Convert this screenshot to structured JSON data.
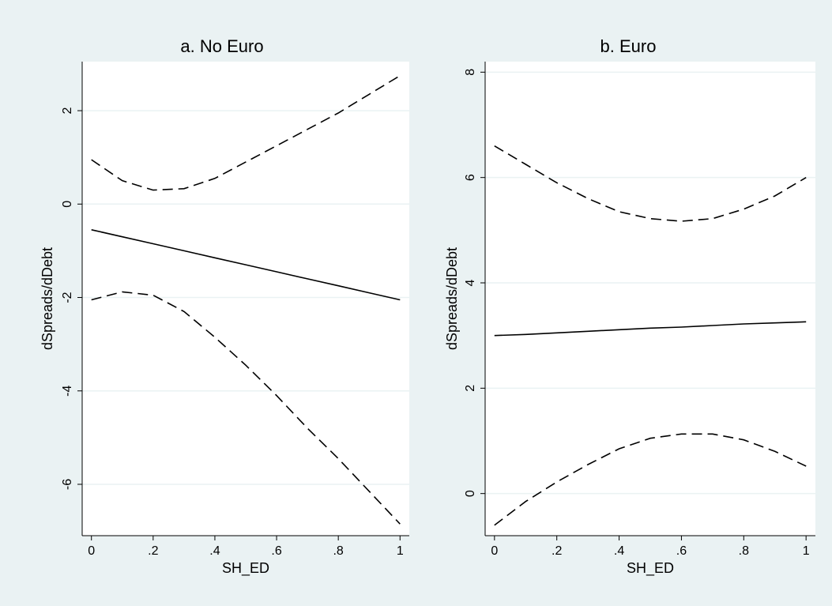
{
  "chart_data": [
    {
      "type": "line",
      "title": "a. No Euro",
      "xlabel": "SH_ED",
      "ylabel": "dSpreads/dDebt",
      "xlim": [
        -0.03,
        1.03
      ],
      "ylim": [
        -7.1,
        3.05
      ],
      "x_ticks": [
        0,
        0.2,
        0.4,
        0.6,
        0.8,
        1
      ],
      "x_tick_labels": [
        "0",
        ".2",
        ".4",
        ".6",
        ".8",
        "1"
      ],
      "y_ticks": [
        -6,
        -4,
        -2,
        0,
        2
      ],
      "y_tick_labels": [
        "-6",
        "-4",
        "-2",
        "0",
        "2"
      ],
      "grid": true,
      "x": [
        0,
        0.1,
        0.2,
        0.3,
        0.4,
        0.5,
        0.6,
        0.7,
        0.8,
        0.9,
        1
      ],
      "series": [
        {
          "style": "solid",
          "values": [
            -0.55,
            -0.7,
            -0.85,
            -1.0,
            -1.15,
            -1.3,
            -1.45,
            -1.6,
            -1.75,
            -1.9,
            -2.05
          ]
        },
        {
          "style": "dashed",
          "values": [
            0.95,
            0.5,
            0.3,
            0.33,
            0.55,
            0.9,
            1.25,
            1.6,
            1.95,
            2.35,
            2.75
          ]
        },
        {
          "style": "dashed",
          "values": [
            -2.05,
            -1.88,
            -1.95,
            -2.3,
            -2.85,
            -3.45,
            -4.1,
            -4.8,
            -5.45,
            -6.15,
            -6.85
          ]
        }
      ]
    },
    {
      "type": "line",
      "title": "b. Euro",
      "xlabel": "SH_ED",
      "ylabel": "dSpreads/dDebt",
      "xlim": [
        -0.03,
        1.03
      ],
      "ylim": [
        -0.8,
        8.2
      ],
      "x_ticks": [
        0,
        0.2,
        0.4,
        0.6,
        0.8,
        1
      ],
      "x_tick_labels": [
        "0",
        ".2",
        ".4",
        ".6",
        ".8",
        "1"
      ],
      "y_ticks": [
        0,
        2,
        4,
        6,
        8
      ],
      "y_tick_labels": [
        "0",
        "2",
        "4",
        "6",
        "8"
      ],
      "grid": true,
      "x": [
        0,
        0.1,
        0.2,
        0.3,
        0.4,
        0.5,
        0.6,
        0.7,
        0.8,
        0.9,
        1
      ],
      "series": [
        {
          "style": "solid",
          "values": [
            3.0,
            3.02,
            3.05,
            3.08,
            3.11,
            3.14,
            3.16,
            3.19,
            3.22,
            3.24,
            3.26
          ]
        },
        {
          "style": "dashed",
          "values": [
            6.6,
            6.25,
            5.9,
            5.6,
            5.35,
            5.22,
            5.17,
            5.22,
            5.4,
            5.65,
            6.0
          ]
        },
        {
          "style": "dashed",
          "values": [
            -0.6,
            -0.15,
            0.22,
            0.55,
            0.85,
            1.05,
            1.13,
            1.13,
            1.02,
            0.8,
            0.52
          ]
        }
      ]
    }
  ]
}
